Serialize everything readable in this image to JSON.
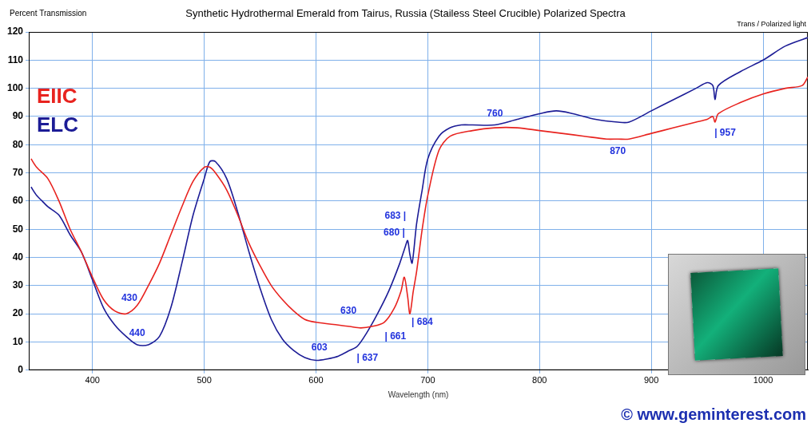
{
  "chart_data": {
    "type": "line",
    "title": "Synthetic Hydrothermal Emerald from Tairus, Russia (Stailess Steel Crucible) Polarized Spectra",
    "y_label": "Percent Transmission",
    "x_label": "Wavelength (nm)",
    "note": "Trans / Polarized light",
    "credit": "© www.geminterest.com",
    "xlim": [
      343,
      1040
    ],
    "xticks": [
      400,
      500,
      600,
      700,
      800,
      900,
      1000
    ],
    "ylim": [
      0,
      120
    ],
    "yticks": [
      0,
      10,
      20,
      30,
      40,
      50,
      60,
      70,
      80,
      90,
      100,
      110,
      120
    ],
    "grid": true,
    "legend": "top-left",
    "series": [
      {
        "name": "EIIC",
        "color": "#e8231f",
        "x": [
          345,
          350,
          360,
          370,
          380,
          390,
          400,
          410,
          420,
          430,
          440,
          450,
          460,
          470,
          480,
          490,
          500,
          505,
          510,
          520,
          530,
          540,
          550,
          560,
          570,
          580,
          590,
          600,
          620,
          630,
          640,
          650,
          661,
          670,
          676,
          679,
          682,
          684,
          687,
          690,
          695,
          700,
          710,
          720,
          740,
          760,
          780,
          800,
          820,
          840,
          860,
          870,
          880,
          900,
          920,
          940,
          950,
          955,
          957,
          960,
          980,
          1000,
          1020,
          1035,
          1040
        ],
        "values": [
          75,
          72,
          68,
          60,
          50,
          42,
          33,
          25,
          21,
          20,
          23,
          30,
          38,
          48,
          58,
          67,
          72,
          72,
          70,
          64,
          55,
          45,
          37,
          30,
          25,
          21,
          18,
          17,
          16,
          15.5,
          15,
          15.5,
          17,
          22,
          28,
          33,
          26,
          20,
          28,
          35,
          50,
          62,
          78,
          83,
          85,
          86,
          86,
          85,
          84,
          83,
          82,
          82,
          82,
          84,
          86,
          88,
          89,
          90,
          88,
          91,
          95,
          98,
          100,
          101,
          104
        ]
      },
      {
        "name": "ELC",
        "color": "#1c1c96",
        "x": [
          345,
          350,
          355,
          360,
          370,
          380,
          390,
          400,
          410,
          420,
          430,
          440,
          450,
          460,
          470,
          480,
          490,
          500,
          505,
          510,
          520,
          530,
          540,
          550,
          560,
          570,
          580,
          590,
          600,
          610,
          620,
          630,
          637,
          645,
          655,
          665,
          675,
          680,
          682,
          684,
          686,
          690,
          695,
          700,
          710,
          720,
          730,
          740,
          760,
          780,
          800,
          815,
          830,
          850,
          870,
          880,
          900,
          920,
          940,
          950,
          955,
          957,
          960,
          980,
          1000,
          1020,
          1040
        ],
        "values": [
          65,
          62,
          60,
          58,
          55,
          48,
          42,
          32,
          22,
          16,
          12,
          9,
          9,
          12,
          22,
          38,
          55,
          68,
          74,
          74,
          68,
          56,
          42,
          29,
          18,
          11,
          7,
          4.5,
          3.5,
          4,
          5,
          7,
          8.5,
          13,
          20,
          28,
          38,
          44,
          46,
          41,
          38,
          52,
          64,
          75,
          83,
          86,
          87,
          87,
          87,
          89,
          91,
          92,
          91,
          89,
          88,
          88,
          92,
          96,
          100,
          102,
          101,
          96,
          101,
          106,
          110,
          115,
          118
        ]
      }
    ],
    "annotations": [
      {
        "text": "430",
        "x": 433,
        "y": 25.5,
        "color": "#2233dd"
      },
      {
        "text": "440",
        "x": 440,
        "y": 13,
        "color": "#2233dd"
      },
      {
        "text": "603",
        "x": 603,
        "y": 8,
        "color": "#2233dd"
      },
      {
        "text": "| 637",
        "x": 646,
        "y": 4.4,
        "color": "#2233dd"
      },
      {
        "text": "630",
        "x": 629,
        "y": 21,
        "color": "#2233dd"
      },
      {
        "text": "| 661",
        "x": 671,
        "y": 12,
        "color": "#2233dd"
      },
      {
        "text": "| 684",
        "x": 695,
        "y": 17,
        "color": "#2233dd"
      },
      {
        "text": "683 |",
        "x": 671,
        "y": 54.7,
        "color": "#2233dd"
      },
      {
        "text": "680 |",
        "x": 670,
        "y": 48.6,
        "color": "#2233dd"
      },
      {
        "text": "760",
        "x": 760,
        "y": 91,
        "color": "#2233dd"
      },
      {
        "text": "870",
        "x": 870,
        "y": 77.6,
        "color": "#2233dd"
      },
      {
        "text": "| 957",
        "x": 966,
        "y": 84,
        "color": "#2233dd"
      }
    ]
  }
}
